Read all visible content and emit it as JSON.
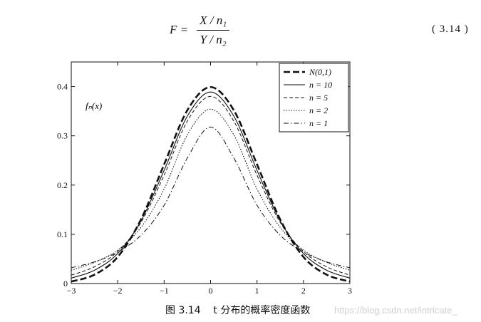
{
  "formula": {
    "lhs": "F =",
    "numerator": "X / n₁",
    "denominator": "Y / n₂",
    "equation_number": "( 3.14 )"
  },
  "caption": "图 3.14    t 分布的概率密度函数",
  "watermark": "https://blog.csdn.net/intricate_",
  "chart_data": {
    "type": "line",
    "ylabel": "fₙ(x)",
    "xlim": [
      -3,
      3
    ],
    "ylim": [
      0,
      0.45
    ],
    "xticks": [
      -3,
      -2,
      -1,
      0,
      1,
      2,
      3
    ],
    "xtick_labels": [
      "−3",
      "−2",
      "−1",
      "0",
      "1",
      "2",
      "3"
    ],
    "yticks": [
      0,
      0.1,
      0.2,
      0.3,
      0.4
    ],
    "ytick_labels": [
      "0",
      "0.1",
      "0.2",
      "0.3",
      "0.4"
    ],
    "grid": false,
    "legend_position": "top-right",
    "series": [
      {
        "name": "N(0,1)",
        "style": "dashed-bold",
        "x": [
          -3,
          -2.5,
          -2,
          -1.5,
          -1,
          -0.5,
          0,
          0.5,
          1,
          1.5,
          2,
          2.5,
          3
        ],
        "y": [
          0.004,
          0.018,
          0.054,
          0.13,
          0.242,
          0.352,
          0.399,
          0.352,
          0.242,
          0.13,
          0.054,
          0.018,
          0.004
        ]
      },
      {
        "name": "n = 10",
        "style": "solid",
        "x": [
          -3,
          -2.5,
          -2,
          -1.5,
          -1,
          -0.5,
          0,
          0.5,
          1,
          1.5,
          2,
          2.5,
          3
        ],
        "y": [
          0.011,
          0.027,
          0.061,
          0.127,
          0.23,
          0.34,
          0.389,
          0.34,
          0.23,
          0.127,
          0.061,
          0.027,
          0.011
        ]
      },
      {
        "name": "n = 5",
        "style": "dashed",
        "x": [
          -3,
          -2.5,
          -2,
          -1.5,
          -1,
          -0.5,
          0,
          0.5,
          1,
          1.5,
          2,
          2.5,
          3
        ],
        "y": [
          0.017,
          0.034,
          0.065,
          0.124,
          0.22,
          0.33,
          0.38,
          0.33,
          0.22,
          0.124,
          0.065,
          0.034,
          0.017
        ]
      },
      {
        "name": "n = 2",
        "style": "dotted",
        "x": [
          -3,
          -2.5,
          -2,
          -1.5,
          -1,
          -0.5,
          0,
          0.5,
          1,
          1.5,
          2,
          2.5,
          3
        ],
        "y": [
          0.027,
          0.043,
          0.068,
          0.114,
          0.192,
          0.302,
          0.354,
          0.302,
          0.192,
          0.114,
          0.068,
          0.043,
          0.027
        ]
      },
      {
        "name": "n = 1",
        "style": "dash-dot",
        "x": [
          -3,
          -2.5,
          -2,
          -1.5,
          -1,
          -0.5,
          0,
          0.5,
          1,
          1.5,
          2,
          2.5,
          3
        ],
        "y": [
          0.032,
          0.044,
          0.064,
          0.098,
          0.159,
          0.255,
          0.318,
          0.255,
          0.159,
          0.098,
          0.064,
          0.044,
          0.032
        ]
      }
    ]
  }
}
